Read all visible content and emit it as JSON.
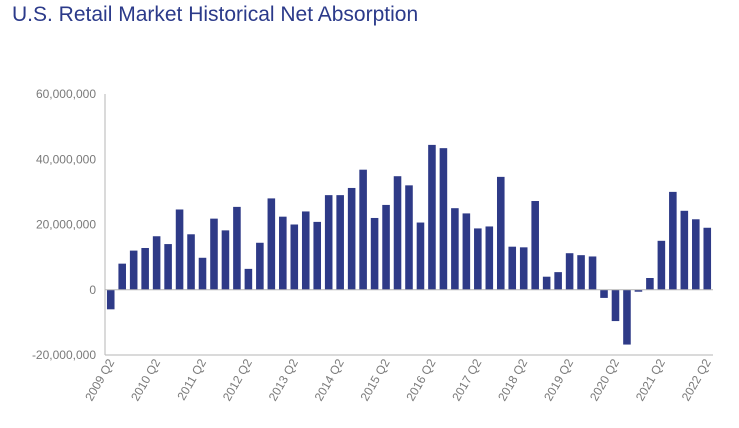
{
  "chart_data": {
    "type": "bar",
    "title": "U.S. Retail Market Historical Net Absorption",
    "xlabel": "",
    "ylabel": "",
    "ylim": [
      -20000000,
      60000000
    ],
    "yticks": [
      60000000,
      40000000,
      20000000,
      0,
      -20000000
    ],
    "ytick_labels": [
      "60,000,000",
      "40,000,000",
      "20,000,000",
      "0",
      "-20,000,000"
    ],
    "grid": false,
    "bar_color": "#2e3a87",
    "categories": [
      "2009 Q2",
      "2009 Q3",
      "2009 Q4",
      "2010 Q1",
      "2010 Q2",
      "2010 Q3",
      "2010 Q4",
      "2011 Q1",
      "2011 Q2",
      "2011 Q3",
      "2011 Q4",
      "2012 Q1",
      "2012 Q2",
      "2012 Q3",
      "2012 Q4",
      "2013 Q1",
      "2013 Q2",
      "2013 Q3",
      "2013 Q4",
      "2014 Q1",
      "2014 Q2",
      "2014 Q3",
      "2014 Q4",
      "2015 Q1",
      "2015 Q2",
      "2015 Q3",
      "2015 Q4",
      "2016 Q1",
      "2016 Q2",
      "2016 Q3",
      "2016 Q4",
      "2017 Q1",
      "2017 Q2",
      "2017 Q3",
      "2017 Q4",
      "2018 Q1",
      "2018 Q2",
      "2018 Q3",
      "2018 Q4",
      "2019 Q1",
      "2019 Q2",
      "2019 Q3",
      "2019 Q4",
      "2020 Q1",
      "2020 Q2",
      "2020 Q3",
      "2020 Q4",
      "2021 Q1",
      "2021 Q2",
      "2021 Q3",
      "2021 Q4",
      "2022 Q1",
      "2022 Q2"
    ],
    "values": [
      -6000000,
      8000000,
      12000000,
      12800000,
      16400000,
      14000000,
      24600000,
      17000000,
      9800000,
      21800000,
      18200000,
      25400000,
      6400000,
      14400000,
      28000000,
      22400000,
      20000000,
      24000000,
      20800000,
      29000000,
      29000000,
      31200000,
      36800000,
      22000000,
      26000000,
      34800000,
      32000000,
      20600000,
      44400000,
      43400000,
      25000000,
      23400000,
      18800000,
      19400000,
      34600000,
      13200000,
      13000000,
      27200000,
      4000000,
      5400000,
      11200000,
      10600000,
      10200000,
      -2500000,
      -9600000,
      -16800000,
      -600000,
      3600000,
      15000000,
      30000000,
      24200000,
      21600000,
      19000000
    ],
    "xtick_labels": [
      "2009 Q2",
      "2010 Q2",
      "2011 Q2",
      "2012 Q2",
      "2013 Q2",
      "2014 Q2",
      "2015 Q2",
      "2016 Q2",
      "2017 Q2",
      "2018 Q2",
      "2019 Q2",
      "2020 Q2",
      "2021 Q2",
      "2022 Q2"
    ]
  }
}
